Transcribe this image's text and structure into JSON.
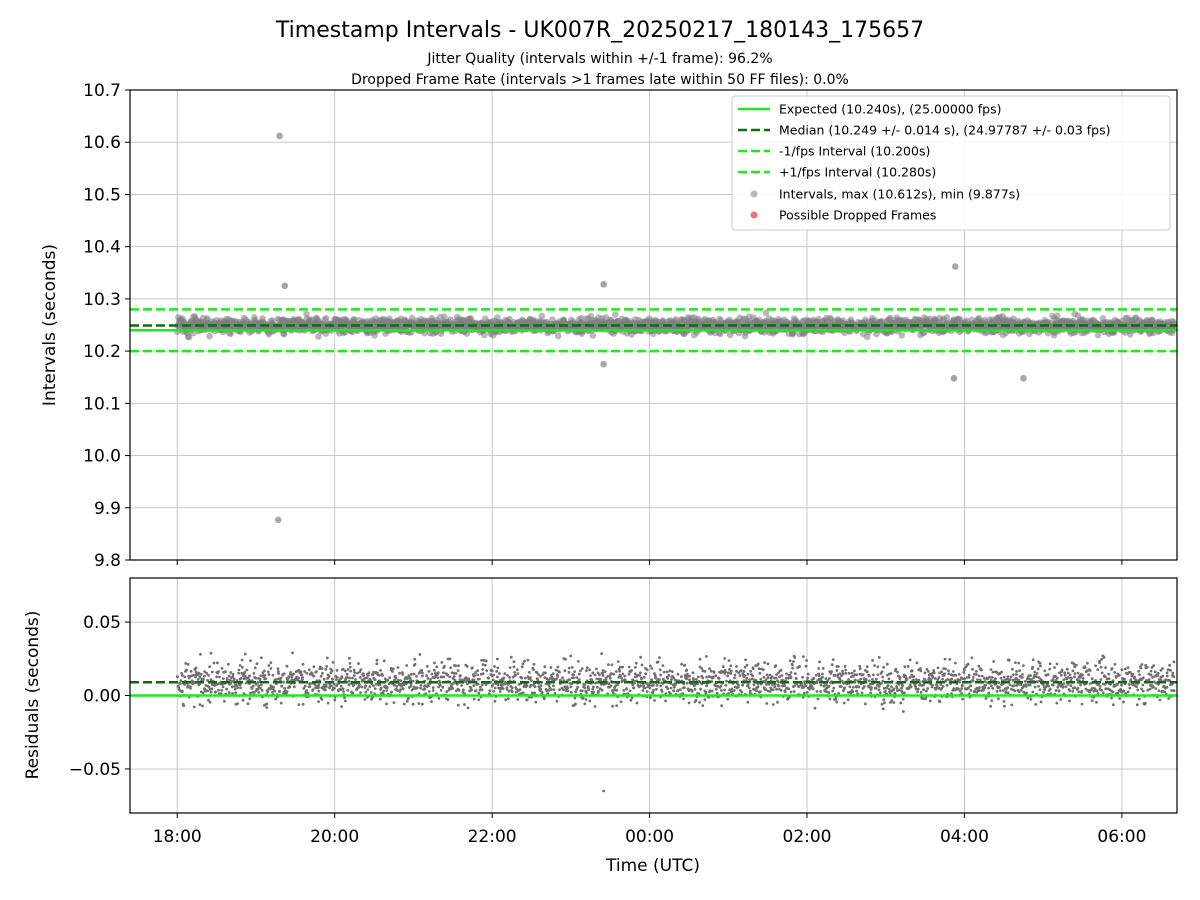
{
  "chart_data": [
    {
      "type": "scatter",
      "title": "Timestamp Intervals - UK007R_20250217_180143_175657",
      "subtitle_lines": [
        "Jitter Quality (intervals within +/-1 frame): 96.2%",
        "Dropped Frame Rate (intervals >1 frames late within 50 FF files): 0.0%"
      ],
      "ylabel": "Intervals (seconds)",
      "ylim": [
        9.8,
        10.7
      ],
      "yticks": [
        "9.8",
        "9.9",
        "10.0",
        "10.1",
        "10.2",
        "10.3",
        "10.4",
        "10.5",
        "10.6",
        "10.7"
      ],
      "xlim_hours_since_1800": [
        -0.6,
        12.7
      ],
      "grid": true,
      "legend_position": "top-right",
      "reference_lines": [
        {
          "name": "Expected (10.240s), (25.00000 fps)",
          "y": 10.24,
          "style": "solid",
          "color": "#1ee81e"
        },
        {
          "name": "Median (10.249 +/- 0.014 s), (24.97787 +/- 0.03 fps)",
          "y": 10.249,
          "style": "dashed",
          "color": "#0b6e0b"
        },
        {
          "name": "-1/fps Interval (10.200s)",
          "y": 10.2,
          "style": "dashed",
          "color": "#1ee81e"
        },
        {
          "name": "+1/fps Interval (10.280s)",
          "y": 10.28,
          "style": "dashed",
          "color": "#1ee81e"
        }
      ],
      "series": [
        {
          "name": "Intervals, max (10.612s), min (9.877s)",
          "color": "#808080",
          "center": 10.249,
          "spread": 0.014,
          "time_range": [
            "18:00",
            "06:40"
          ]
        },
        {
          "name": "Possible Dropped Frames",
          "color": "#f07070",
          "count": 0
        }
      ],
      "outliers": [
        {
          "time": "19:18",
          "y": 10.612
        },
        {
          "time": "19:17",
          "y": 9.877
        },
        {
          "time": "03:53",
          "y": 10.362
        },
        {
          "time": "04:45",
          "y": 10.148
        },
        {
          "time": "03:52",
          "y": 10.148
        },
        {
          "time": "23:25",
          "y": 10.175
        },
        {
          "time": "19:22",
          "y": 10.325
        },
        {
          "time": "23:25",
          "y": 10.328
        }
      ]
    },
    {
      "type": "scatter",
      "ylabel": "Residuals (seconds)",
      "ylim": [
        -0.08,
        0.08
      ],
      "yticks": [
        "−0.05",
        "0.00",
        "0.05"
      ],
      "grid": true,
      "reference_lines": [
        {
          "y": 0.0,
          "style": "solid",
          "color": "#1ee81e"
        },
        {
          "y": 0.009,
          "style": "dashed",
          "color": "#0b6e0b"
        }
      ],
      "series": [
        {
          "color": "#707070",
          "center": 0.009,
          "spread": 0.014
        }
      ],
      "xlabel": "Time (UTC)",
      "xticks": [
        "18:00",
        "20:00",
        "22:00",
        "00:00",
        "02:00",
        "04:00",
        "06:00"
      ]
    }
  ]
}
